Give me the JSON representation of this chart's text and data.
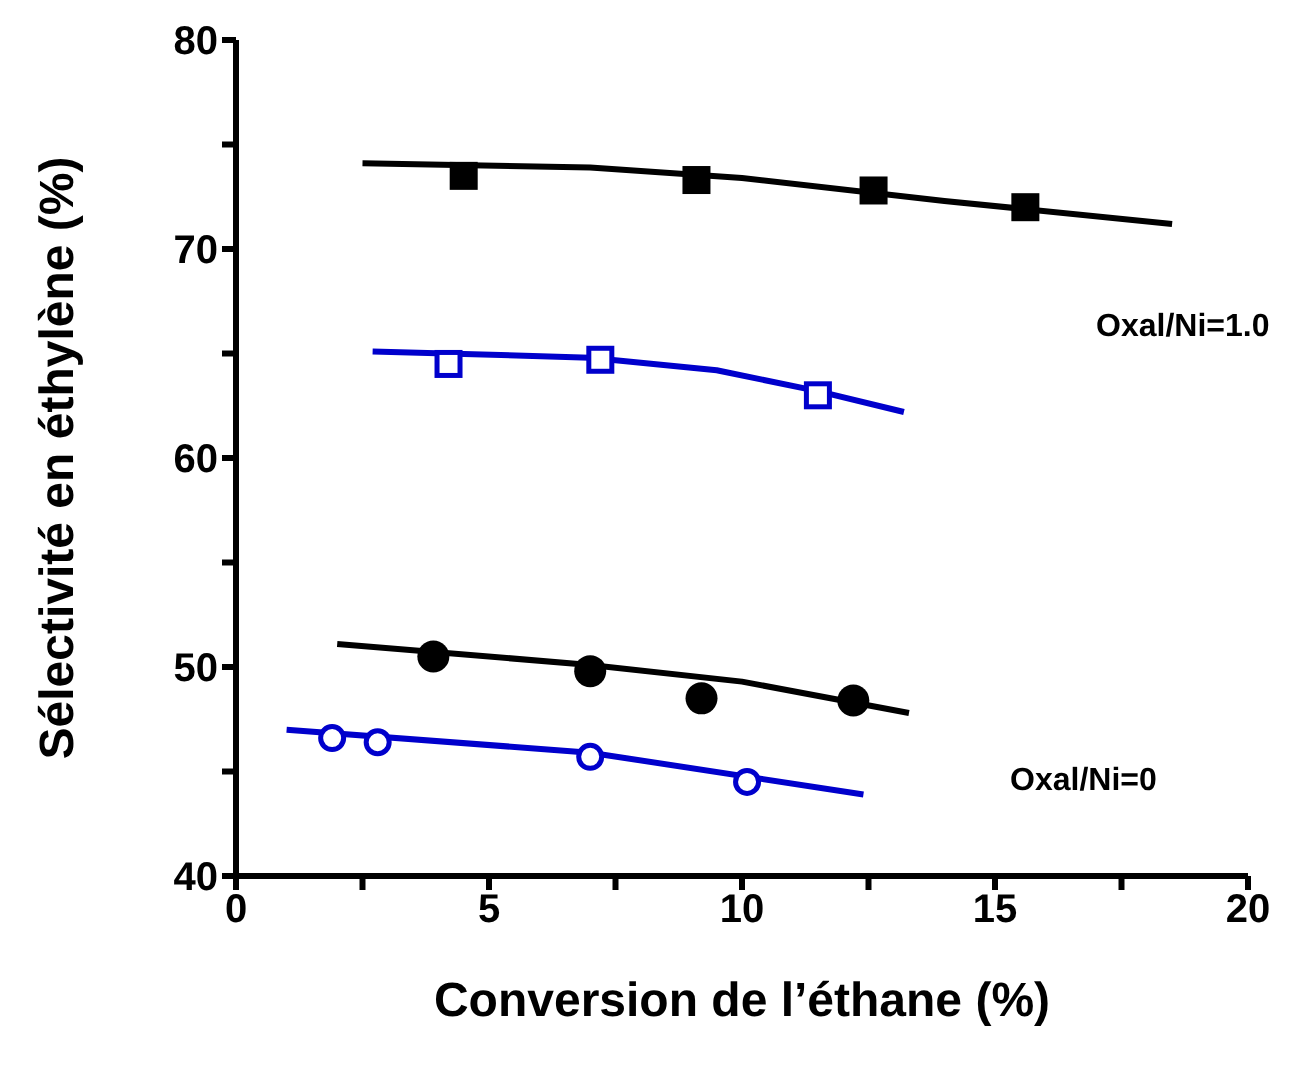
{
  "chart_data": {
    "type": "scatter",
    "xlabel": "Conversion de l’éthane (%)",
    "ylabel": "Sélectivité en éthylène (%)",
    "xlim": [
      0,
      20
    ],
    "xticks": [
      0,
      {
        "value": 2.5,
        "label": null
      },
      5,
      {
        "value": 7.5,
        "label": null
      },
      10,
      {
        "value": 12.5,
        "label": null
      },
      15,
      {
        "value": 17.5,
        "label": null
      },
      20
    ],
    "ylim": [
      40,
      80
    ],
    "yticks": [
      40,
      {
        "value": 45,
        "label": null
      },
      50,
      {
        "value": 55,
        "label": null
      },
      60,
      {
        "value": 65,
        "label": null
      },
      70,
      {
        "value": 75,
        "label": null
      },
      80
    ],
    "grid": false,
    "legend": false,
    "series": [
      {
        "type": "line",
        "marker": "none",
        "color": "#000000",
        "x": [
          2.5,
          7,
          10,
          14,
          18.5
        ],
        "values": [
          74.1,
          73.9,
          73.4,
          72.3,
          71.2
        ]
      },
      {
        "type": "line",
        "marker": "none",
        "color": "#0000cc",
        "x": [
          2.7,
          7,
          9.5,
          11.5,
          13.2
        ],
        "values": [
          65.1,
          64.8,
          64.2,
          63.2,
          62.2
        ]
      },
      {
        "type": "line",
        "marker": "none",
        "color": "#000000",
        "x": [
          2,
          7,
          10,
          13.3
        ],
        "values": [
          51.1,
          50.1,
          49.3,
          47.8
        ]
      },
      {
        "type": "line",
        "marker": "none",
        "color": "#0000cc",
        "x": [
          1,
          7,
          12.4
        ],
        "values": [
          47,
          45.9,
          43.9
        ]
      },
      {
        "marker": "square",
        "color": "#000000",
        "x": [
          4.5,
          9.1,
          12.6,
          15.6
        ],
        "values": [
          73.5,
          73.3,
          72.8,
          72.0
        ]
      },
      {
        "marker": "square",
        "color": "#0000cc",
        "x": [
          4.2,
          7.2,
          11.5
        ],
        "values": [
          64.5,
          64.7,
          63.0
        ]
      },
      {
        "marker": "circle",
        "color": "#000000",
        "x": [
          3.9,
          7.0,
          9.2,
          12.2
        ],
        "values": [
          50.5,
          49.8,
          48.5,
          48.4
        ]
      },
      {
        "marker": "circle",
        "color": "#0000cc",
        "x": [
          1.9,
          2.8,
          7.0,
          10.1
        ],
        "values": [
          46.6,
          46.4,
          45.7,
          44.5
        ]
      }
    ],
    "annotations": [
      "Oxal/Ni=1.0",
      "Oxal/Ni=0"
    ]
  }
}
